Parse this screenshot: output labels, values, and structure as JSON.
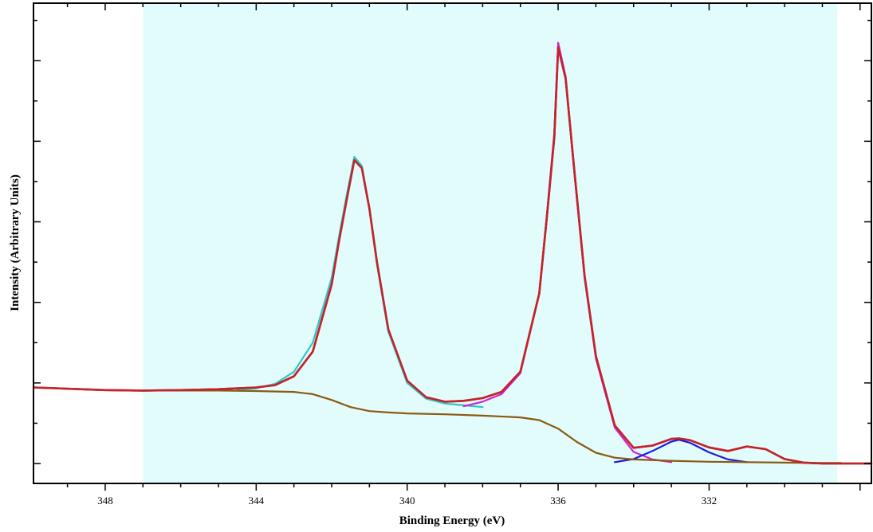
{
  "chart_data": {
    "type": "line",
    "title": "",
    "xlabel": "Binding Energy (eV)",
    "ylabel": "Intensity (Arbitrary Units)",
    "x_reversed": true,
    "xlim": [
      349.9,
      327.7
    ],
    "ylim": [
      0,
      100
    ],
    "x_ticks": [
      348,
      344,
      340,
      336,
      332
    ],
    "y_ticks_labeled": false,
    "grid": false,
    "legend": "none",
    "shaded_region": {
      "x_from": 347.0,
      "x_to": 328.6,
      "color": "#e2fcfc"
    },
    "series": [
      {
        "color": "#c3232b",
        "x": [
          349.9,
          348.0,
          347.0,
          346.0,
          345.0,
          344.0,
          343.5,
          343.0,
          342.5,
          342.0,
          341.8,
          341.6,
          341.4,
          341.2,
          341.0,
          340.8,
          340.5,
          340.0,
          339.5,
          339.0,
          338.5,
          338.0,
          337.5,
          337.0,
          336.5,
          336.3,
          336.1,
          336.0,
          335.8,
          335.6,
          335.3,
          335.0,
          334.5,
          334.0,
          333.5,
          333.0,
          332.8,
          332.5,
          332.0,
          331.5,
          331.0,
          330.5,
          330.0,
          329.5,
          329.0,
          328.0,
          327.7
        ],
        "y": [
          17.0,
          16.4,
          16.3,
          16.4,
          16.6,
          17.0,
          17.5,
          19.5,
          25.0,
          40.0,
          50.0,
          59.0,
          67.8,
          66.0,
          57.0,
          45.0,
          30.0,
          18.5,
          14.8,
          13.8,
          14.0,
          14.6,
          16.0,
          20.5,
          38.0,
          55.0,
          73.0,
          93.0,
          86.0,
          68.0,
          42.0,
          24.0,
          8.5,
          3.5,
          4.0,
          5.5,
          5.6,
          5.2,
          3.6,
          2.8,
          3.8,
          3.2,
          1.0,
          0.2,
          0.0,
          0.0,
          0.0
        ]
      },
      {
        "color": "#2fc6c6",
        "x": [
          344.5,
          344.0,
          343.5,
          343.0,
          342.5,
          342.0,
          341.8,
          341.6,
          341.4,
          341.2,
          341.0,
          340.8,
          340.5,
          340.0,
          339.5,
          339.0,
          338.5,
          338.0
        ],
        "y": [
          16.4,
          16.8,
          17.8,
          20.5,
          27.0,
          41.5,
          51.0,
          60.0,
          68.5,
          66.5,
          57.0,
          44.5,
          29.5,
          18.0,
          14.5,
          13.4,
          13.0,
          12.6
        ]
      },
      {
        "color": "#d023d0",
        "x": [
          338.5,
          338.0,
          337.5,
          337.0,
          336.5,
          336.3,
          336.1,
          336.0,
          335.8,
          335.6,
          335.3,
          335.0,
          334.5,
          334.0,
          333.5,
          333.0
        ],
        "y": [
          12.8,
          13.8,
          15.5,
          20.2,
          38.0,
          55.5,
          74.0,
          94.0,
          86.5,
          67.5,
          41.5,
          23.5,
          8.0,
          2.6,
          0.9,
          0.3
        ]
      },
      {
        "color": "#1b1be0",
        "x": [
          334.5,
          334.0,
          333.5,
          333.0,
          332.8,
          332.5,
          332.0,
          331.5,
          331.0
        ],
        "y": [
          0.3,
          1.0,
          2.8,
          4.9,
          5.3,
          4.6,
          2.5,
          0.9,
          0.3
        ]
      },
      {
        "color": "#8b5a12",
        "x": [
          347.0,
          346.0,
          345.0,
          344.0,
          343.0,
          342.5,
          342.0,
          341.5,
          341.0,
          340.5,
          340.0,
          339.0,
          338.0,
          337.0,
          336.5,
          336.0,
          335.5,
          335.0,
          334.5,
          334.0,
          333.0,
          332.0,
          331.0,
          330.0,
          329.0,
          328.5
        ],
        "y": [
          16.3,
          16.3,
          16.3,
          16.2,
          16.0,
          15.5,
          14.2,
          12.6,
          11.7,
          11.4,
          11.2,
          11.0,
          10.7,
          10.3,
          9.7,
          7.8,
          4.8,
          2.4,
          1.3,
          0.9,
          0.6,
          0.4,
          0.3,
          0.2,
          0.1,
          0.1
        ]
      }
    ]
  }
}
